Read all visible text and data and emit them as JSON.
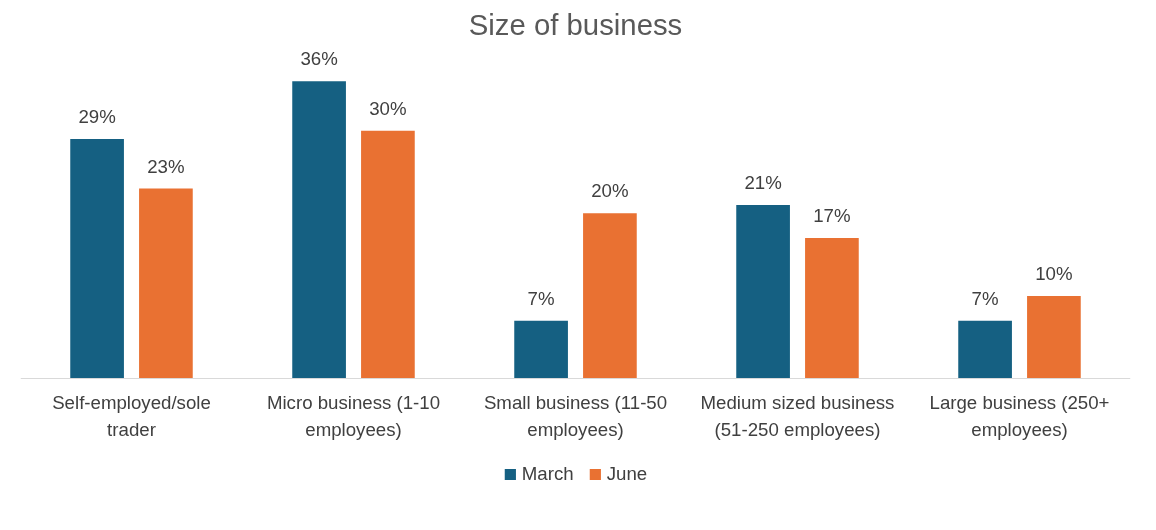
{
  "chart_data": {
    "type": "bar",
    "title": "Size of business",
    "categories": [
      "Self-employed/sole trader",
      "Micro business (1-10 employees)",
      "Small business (11-50 employees)",
      "Medium sized business (51-250 employees)",
      "Large business (250+ employees)"
    ],
    "series": [
      {
        "name": "March",
        "color": "#156082",
        "values": [
          29,
          36,
          7,
          21,
          7
        ],
        "value_labels": [
          "29%",
          "36%",
          "7%",
          "21%",
          "7%"
        ]
      },
      {
        "name": "June",
        "color": "#e97132",
        "values": [
          23,
          30,
          20,
          17,
          10
        ],
        "value_labels": [
          "23%",
          "30%",
          "20%",
          "17%",
          "10%"
        ]
      }
    ],
    "legend": "bottom",
    "grid": false
  }
}
